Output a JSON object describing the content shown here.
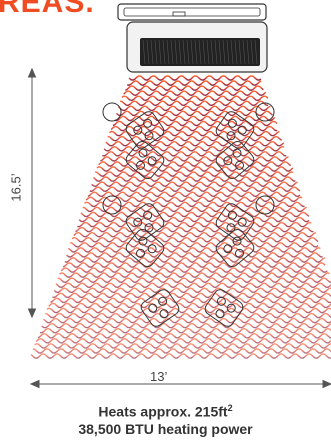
{
  "title": "REAS.",
  "colors": {
    "accent": "#ef4c23",
    "wave_top": "#ff5a1f",
    "wave_bottom": "#7a1a3a",
    "heater_body": "#e9e9e9",
    "outline": "#333333"
  },
  "heater": {
    "icon": "patio-heater-icon"
  },
  "coverage": {
    "height_label": "16.5’",
    "width_label": "13’"
  },
  "captions": {
    "line1": "Heats approx. 215ft",
    "line1_sup": "2",
    "line2": "38,500 BTU heating power"
  }
}
